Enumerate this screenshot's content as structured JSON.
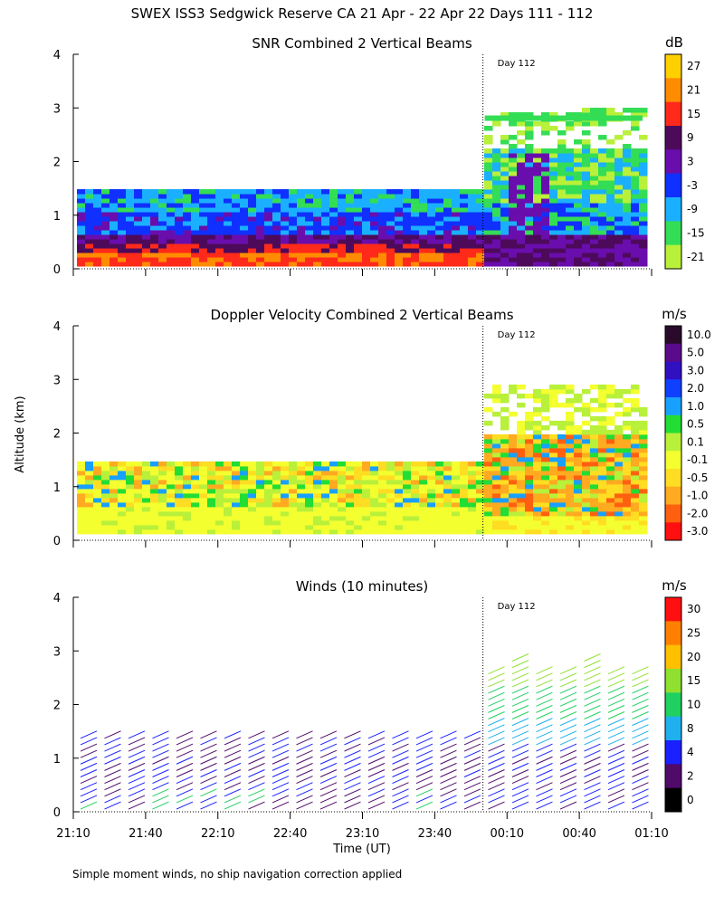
{
  "figure": {
    "title": "SWEX ISS3 Sedgwick Reserve CA  21 Apr - 22 Apr 22 Days 111 - 112",
    "footnote": "Simple moment winds, no ship navigation correction applied",
    "ylabel": "Altitude (km)",
    "xlabel": "Time (UT)",
    "day_marker_label": "Day 112",
    "day_marker_time": "00:00"
  },
  "chart_data": [
    {
      "type": "heatmap",
      "title": "SNR Combined 2 Vertical Beams",
      "units": "dB",
      "xlabel": "Time (UT)",
      "ylabel": "Altitude (km)",
      "ylim": [
        0,
        4
      ],
      "yticks": [
        "0",
        "1",
        "2",
        "3",
        "4"
      ],
      "xticks": [
        "21:10",
        "21:40",
        "22:10",
        "22:40",
        "23:10",
        "23:40",
        "00:10",
        "00:40",
        "01:10"
      ],
      "colorbar": {
        "labels": [
          "27",
          "21",
          "15",
          "9",
          "3",
          "-3",
          "-9",
          "-15",
          "-21"
        ],
        "colors": [
          "#ffd000",
          "#ff8c00",
          "#ff2a1a",
          "#4d0a5a",
          "#6a0dad",
          "#1030ff",
          "#1ab0ff",
          "#33dd55",
          "#b8f03a"
        ]
      }
    },
    {
      "type": "heatmap",
      "title": "Doppler Velocity Combined 2 Vertical Beams",
      "units": "m/s",
      "xlabel": "Time (UT)",
      "ylabel": "Altitude (km)",
      "ylim": [
        0,
        4
      ],
      "yticks": [
        "0",
        "1",
        "2",
        "3",
        "4"
      ],
      "xticks": [
        "21:10",
        "21:40",
        "22:10",
        "22:40",
        "23:10",
        "23:40",
        "00:10",
        "00:40",
        "01:10"
      ],
      "colorbar": {
        "labels": [
          "10.0",
          "5.0",
          "3.0",
          "2.0",
          "1.0",
          "0.5",
          "0.1",
          "-0.1",
          "-0.5",
          "-1.0",
          "-2.0",
          "-3.0"
        ],
        "colors": [
          "#2a0a2a",
          "#5a0a8a",
          "#3010c0",
          "#1040ff",
          "#18a0ff",
          "#22dd33",
          "#b8f03a",
          "#f4ff30",
          "#ffdd22",
          "#ffaa20",
          "#ff6010",
          "#ff1010"
        ]
      }
    },
    {
      "type": "wind-barbs",
      "title": "Winds (10 minutes)",
      "units": "m/s",
      "xlabel": "Time (UT)",
      "ylabel": "Altitude (km)",
      "ylim": [
        0,
        4
      ],
      "yticks": [
        "0",
        "1",
        "2",
        "3",
        "4"
      ],
      "xticks": [
        "21:10",
        "21:40",
        "22:10",
        "22:40",
        "23:10",
        "23:40",
        "00:10",
        "00:40",
        "01:10"
      ],
      "colorbar": {
        "labels": [
          "30",
          "25",
          "20",
          "15",
          "10",
          "8",
          "4",
          "2",
          "0"
        ],
        "colors": [
          "#ff1010",
          "#ff8000",
          "#ffc000",
          "#90e030",
          "#20d060",
          "#20b0f0",
          "#1a20ff",
          "#500a6a",
          "#000000"
        ]
      }
    }
  ]
}
